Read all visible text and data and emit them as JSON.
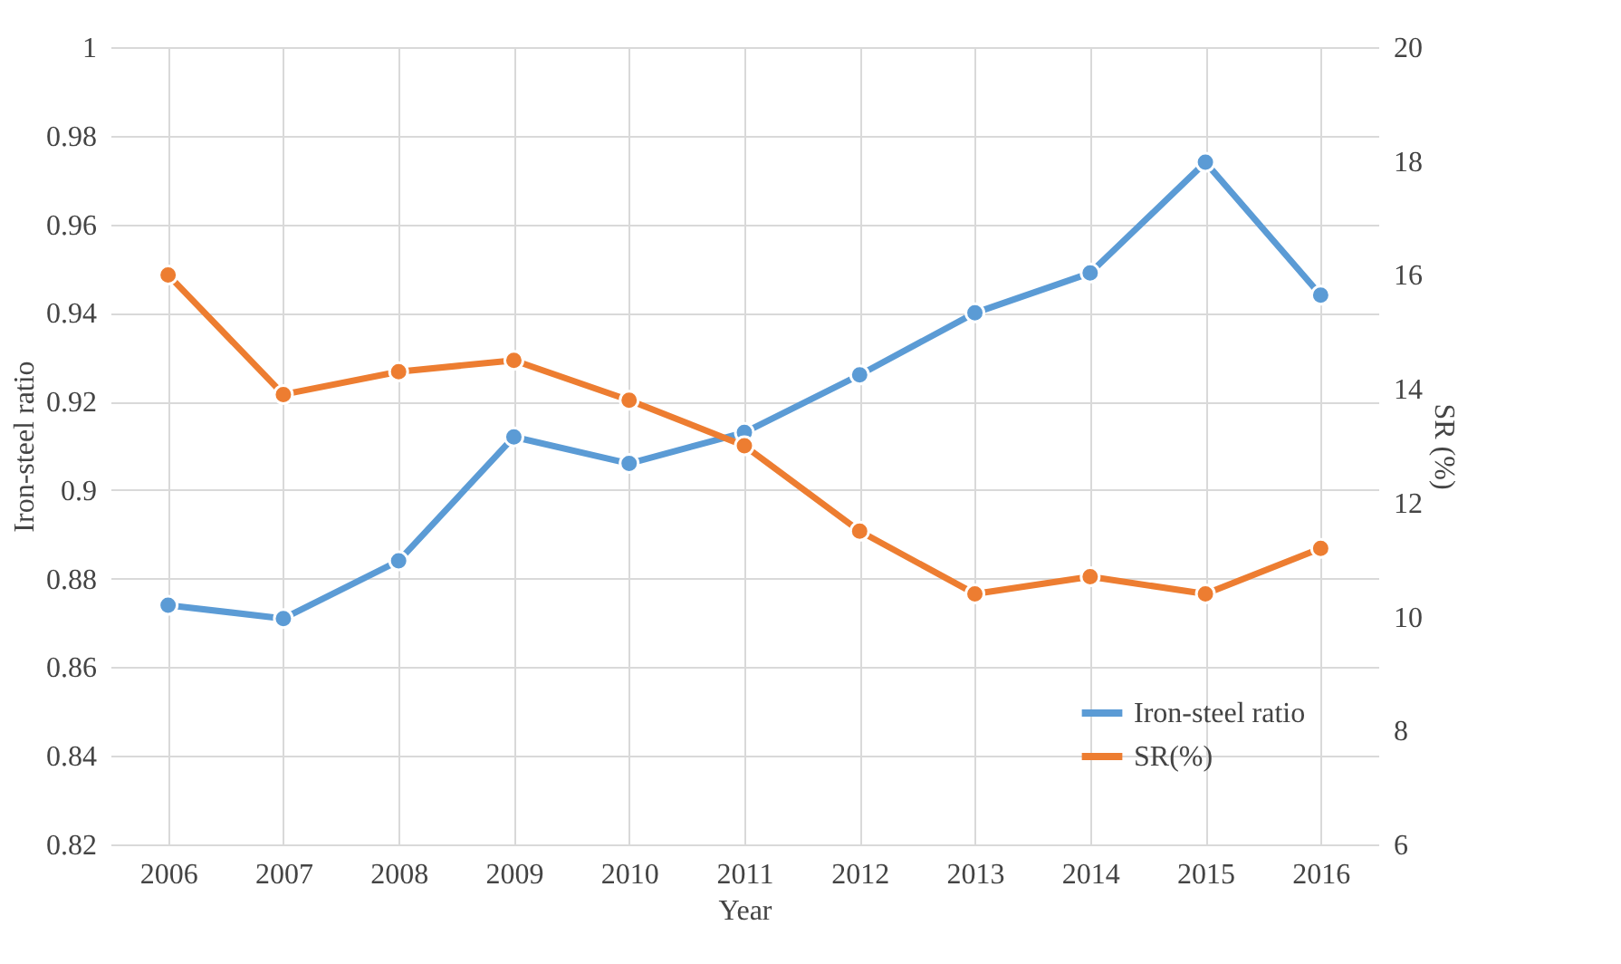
{
  "chart_data": {
    "type": "line",
    "xlabel": "Year",
    "ylabel": "Iron-steel ratio",
    "y2label": "SR (%)",
    "categories": [
      "2006",
      "2007",
      "2008",
      "2009",
      "2010",
      "2011",
      "2012",
      "2013",
      "2014",
      "2015",
      "2016"
    ],
    "series": [
      {
        "name": "Iron-steel ratio",
        "color": "#5b9bd5",
        "values": [
          0.874,
          0.871,
          0.884,
          0.912,
          0.906,
          0.913,
          0.926,
          0.94,
          0.949,
          0.974,
          0.944
        ]
      },
      {
        "name": "SR(%)",
        "color": "#ed7d31",
        "axis": "y2",
        "values": [
          16.0,
          13.9,
          14.3,
          14.5,
          13.8,
          13.0,
          11.5,
          10.4,
          10.7,
          10.4,
          11.2
        ]
      }
    ],
    "ylim": [
      0.82,
      1
    ],
    "yticks": [
      0.82,
      0.84,
      0.86,
      0.88,
      0.9,
      0.92,
      0.94,
      0.96,
      0.98,
      1
    ],
    "y2lim": [
      6,
      20
    ],
    "y2ticks": [
      6,
      8,
      10,
      12,
      14,
      16,
      18,
      20
    ],
    "grid": true,
    "legend": "bottom right",
    "marker": "circle",
    "line_style": "solid"
  }
}
